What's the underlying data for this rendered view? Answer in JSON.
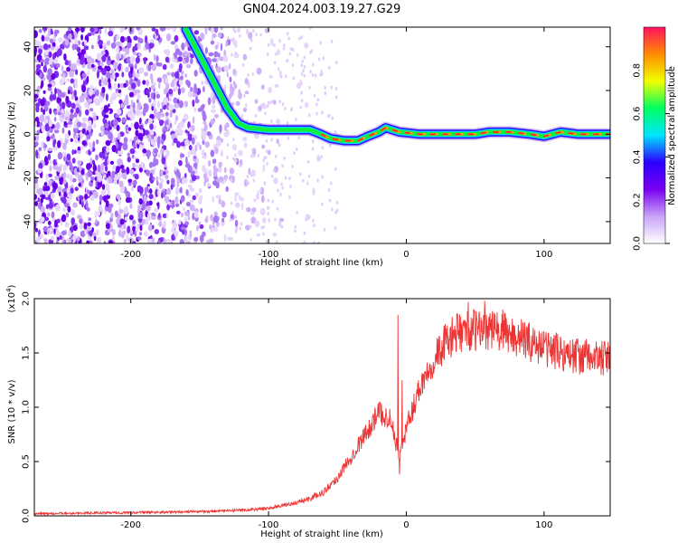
{
  "figure": {
    "title": "GN04.2024.003.19.27.G29"
  },
  "chart_data": [
    {
      "type": "heatmap",
      "xlabel": "Height of straight line (km)",
      "ylabel": "Frequency (Hz)",
      "xlim": [
        -270,
        148
      ],
      "ylim": [
        -50,
        49
      ],
      "xticks": [
        -200,
        -100,
        0,
        100
      ],
      "yticks": [
        -40,
        -20,
        0,
        20,
        40
      ],
      "ridge": [
        [
          -160,
          48
        ],
        [
          -150,
          36
        ],
        [
          -140,
          24
        ],
        [
          -130,
          12
        ],
        [
          -122,
          5
        ],
        [
          -115,
          3
        ],
        [
          -100,
          2
        ],
        [
          -85,
          2
        ],
        [
          -70,
          2
        ],
        [
          -62,
          0
        ],
        [
          -55,
          -2
        ],
        [
          -45,
          -3
        ],
        [
          -35,
          -3
        ],
        [
          -28,
          -1
        ],
        [
          -20,
          1
        ],
        [
          -15,
          3
        ],
        [
          -5,
          1
        ],
        [
          10,
          0
        ],
        [
          30,
          0
        ],
        [
          50,
          0
        ],
        [
          60,
          1
        ],
        [
          75,
          1
        ],
        [
          90,
          0
        ],
        [
          100,
          -1
        ],
        [
          112,
          1
        ],
        [
          125,
          0
        ],
        [
          148,
          0
        ]
      ],
      "colorbar": {
        "label": "Normalized spectral amplitude",
        "range": [
          0,
          1
        ],
        "ticks": [
          "0.0",
          "0.2",
          "0.4",
          "0.6",
          "0.8"
        ],
        "colors": [
          "#ffffff",
          "#c9a4f8",
          "#7a00f0",
          "#2a00ff",
          "#00e5ff",
          "#00ff60",
          "#f0ff00",
          "#ff8c00",
          "#ff1060"
        ]
      }
    },
    {
      "type": "line",
      "xlabel": "Height of straight line (km)",
      "ylabel": "SNR (10 * v/v)",
      "yscale_label": "(x10",
      "yscale_exp": "4",
      "yscale_close": ")",
      "xlim": [
        -270,
        148
      ],
      "ylim": [
        0,
        2.0
      ],
      "xticks": [
        -200,
        -100,
        0,
        100
      ],
      "yticks": [
        "0.0",
        "0.5",
        "1.0",
        "1.5",
        "2.0"
      ],
      "color": "#ee3333",
      "series_envelope": [
        [
          -270,
          0.02
        ],
        [
          -200,
          0.03
        ],
        [
          -150,
          0.04
        ],
        [
          -120,
          0.05
        ],
        [
          -100,
          0.07
        ],
        [
          -80,
          0.12
        ],
        [
          -70,
          0.16
        ],
        [
          -60,
          0.22
        ],
        [
          -50,
          0.35
        ],
        [
          -40,
          0.55
        ],
        [
          -30,
          0.75
        ],
        [
          -20,
          0.95
        ],
        [
          -12,
          0.9
        ],
        [
          -8,
          0.7
        ],
        [
          -5,
          0.55
        ],
        [
          0,
          0.8
        ],
        [
          5,
          1.0
        ],
        [
          10,
          1.2
        ],
        [
          20,
          1.45
        ],
        [
          30,
          1.62
        ],
        [
          40,
          1.7
        ],
        [
          60,
          1.72
        ],
        [
          80,
          1.65
        ],
        [
          100,
          1.55
        ],
        [
          120,
          1.48
        ],
        [
          148,
          1.44
        ]
      ],
      "spikes": [
        [
          -6,
          1.85
        ],
        [
          -5,
          0.38
        ],
        [
          -3,
          1.25
        ],
        [
          45,
          1.97
        ],
        [
          57,
          1.98
        ],
        [
          70,
          1.9
        ]
      ]
    }
  ]
}
